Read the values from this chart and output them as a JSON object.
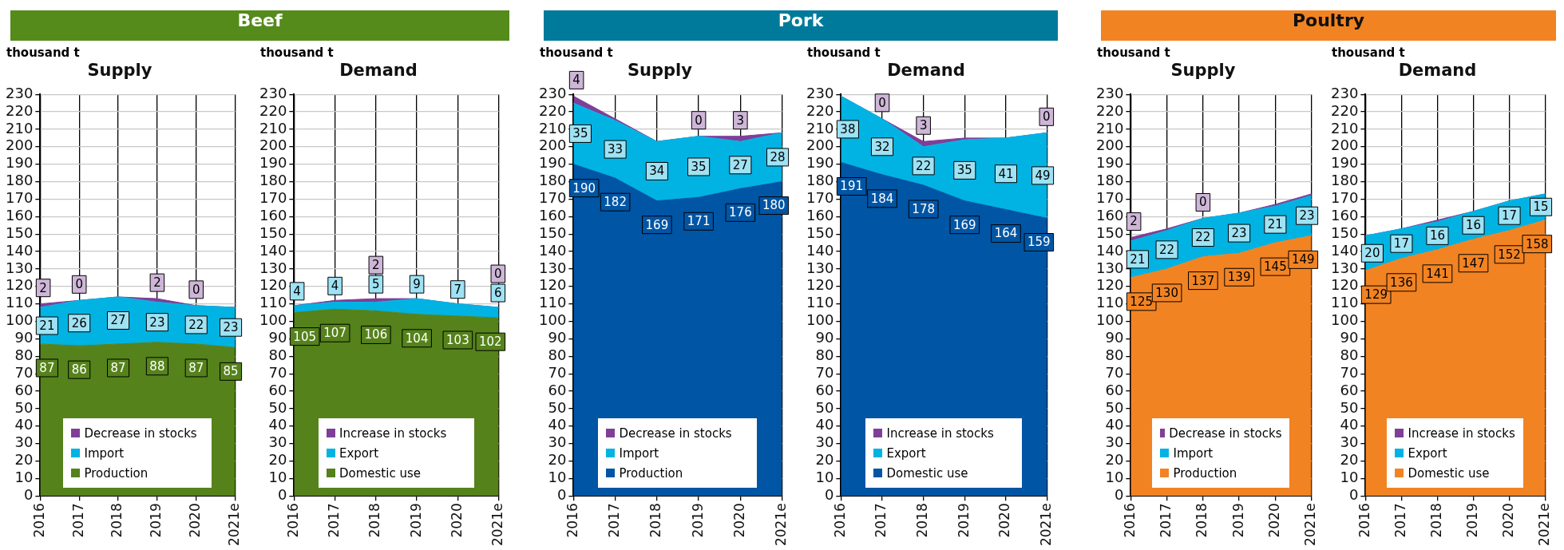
{
  "chart_data": [
    {
      "type": "area",
      "subtitle": "Beef",
      "title": "Supply",
      "ylabel": "thousand t",
      "categories": [
        "2016",
        "2017",
        "2018",
        "2019",
        "2020",
        "2021e"
      ],
      "stacked": true,
      "ylim": [
        0,
        230
      ],
      "yticks": [
        0,
        10,
        20,
        30,
        40,
        50,
        60,
        70,
        80,
        90,
        100,
        110,
        120,
        130,
        140,
        150,
        160,
        170,
        180,
        190,
        200,
        210,
        220,
        230
      ],
      "grid": true,
      "legend": "bottom",
      "series": [
        {
          "name": "Production",
          "color": "#55821b",
          "values": [
            87,
            86,
            87,
            88,
            87,
            85
          ],
          "value_labels": [
            "87",
            "86",
            "87",
            "88",
            "87",
            "85"
          ]
        },
        {
          "name": "Import",
          "color": "#00b3e3",
          "values": [
            21,
            26,
            27,
            23,
            22,
            23
          ],
          "value_labels": [
            "21",
            "26",
            "27",
            "23",
            "22",
            "23"
          ]
        },
        {
          "name": "Decrease in stocks",
          "color": "#7f3f98",
          "values": [
            2,
            0,
            0,
            2,
            0,
            0
          ],
          "value_labels": [
            "2",
            "0",
            null,
            "2",
            "0",
            null
          ]
        }
      ]
    },
    {
      "type": "area",
      "title": "Demand",
      "ylabel": "thousand t",
      "categories": [
        "2016",
        "2017",
        "2018",
        "2019",
        "2020",
        "2021e"
      ],
      "stacked": true,
      "ylim": [
        0,
        230
      ],
      "yticks": [
        0,
        10,
        20,
        30,
        40,
        50,
        60,
        70,
        80,
        90,
        100,
        110,
        120,
        130,
        140,
        150,
        160,
        170,
        180,
        190,
        200,
        210,
        220,
        230
      ],
      "grid": true,
      "legend": "bottom",
      "series": [
        {
          "name": "Domestic use",
          "color": "#55821b",
          "values": [
            105,
            107,
            106,
            104,
            103,
            102
          ],
          "value_labels": [
            "105",
            "107",
            "106",
            "104",
            "103",
            "102"
          ]
        },
        {
          "name": "Export",
          "color": "#00b3e3",
          "values": [
            4,
            4,
            5,
            9,
            7,
            6
          ],
          "value_labels": [
            "4",
            "4",
            "5",
            "9",
            "7",
            "6"
          ]
        },
        {
          "name": "Increase in stocks",
          "color": "#7f3f98",
          "values": [
            0,
            1,
            2,
            0,
            0,
            0
          ],
          "value_labels": [
            null,
            null,
            "2",
            null,
            null,
            "0"
          ]
        }
      ]
    },
    {
      "type": "area",
      "subtitle": "Pork",
      "title": "Supply",
      "ylabel": "thousand t",
      "categories": [
        "2016",
        "2017",
        "2018",
        "2019",
        "2020",
        "2021e"
      ],
      "stacked": true,
      "ylim": [
        0,
        230
      ],
      "yticks": [
        0,
        10,
        20,
        30,
        40,
        50,
        60,
        70,
        80,
        90,
        100,
        110,
        120,
        130,
        140,
        150,
        160,
        170,
        180,
        190,
        200,
        210,
        220,
        230
      ],
      "grid": true,
      "legend": "bottom",
      "series": [
        {
          "name": "Production",
          "color": "#0055a4",
          "values": [
            190,
            182,
            169,
            171,
            176,
            180
          ],
          "value_labels": [
            "190",
            "182",
            "169",
            "171",
            "176",
            "180"
          ]
        },
        {
          "name": "Import",
          "color": "#00b3e3",
          "values": [
            35,
            33,
            34,
            35,
            27,
            28
          ],
          "value_labels": [
            "35",
            "33",
            "34",
            "35",
            "27",
            "28"
          ]
        },
        {
          "name": "Decrease in stocks",
          "color": "#7f3f98",
          "values": [
            4,
            1,
            0,
            0,
            3,
            0
          ],
          "value_labels": [
            "4",
            null,
            null,
            "0",
            "3",
            null
          ]
        }
      ]
    },
    {
      "type": "area",
      "title": "Demand",
      "ylabel": "thousand t",
      "categories": [
        "2016",
        "2017",
        "2018",
        "2019",
        "2020",
        "2021e"
      ],
      "stacked": true,
      "ylim": [
        0,
        230
      ],
      "yticks": [
        0,
        10,
        20,
        30,
        40,
        50,
        60,
        70,
        80,
        90,
        100,
        110,
        120,
        130,
        140,
        150,
        160,
        170,
        180,
        190,
        200,
        210,
        220,
        230
      ],
      "grid": true,
      "legend": "bottom",
      "series": [
        {
          "name": "Domestic use",
          "color": "#0055a4",
          "values": [
            191,
            184,
            178,
            169,
            164,
            159
          ],
          "value_labels": [
            "191",
            "184",
            "178",
            "169",
            "164",
            "159"
          ]
        },
        {
          "name": "Export",
          "color": "#00b3e3",
          "values": [
            38,
            32,
            22,
            35,
            41,
            49
          ],
          "value_labels": [
            "38",
            "32",
            "22",
            "35",
            "41",
            "49"
          ]
        },
        {
          "name": "Increase in stocks",
          "color": "#7f3f98",
          "values": [
            0,
            0,
            3,
            1,
            0,
            0
          ],
          "value_labels": [
            null,
            "0",
            "3",
            null,
            null,
            "0"
          ]
        }
      ]
    },
    {
      "type": "area",
      "subtitle": "Poultry",
      "title": "Supply",
      "ylabel": "thousand t",
      "categories": [
        "2016",
        "2017",
        "2018",
        "2019",
        "2020",
        "2021e"
      ],
      "stacked": true,
      "ylim": [
        0,
        230
      ],
      "yticks": [
        0,
        10,
        20,
        30,
        40,
        50,
        60,
        70,
        80,
        90,
        100,
        110,
        120,
        130,
        140,
        150,
        160,
        170,
        180,
        190,
        200,
        210,
        220,
        230
      ],
      "grid": true,
      "legend": "bottom",
      "series": [
        {
          "name": "Production",
          "color": "#f28322",
          "values": [
            125,
            130,
            137,
            139,
            145,
            149
          ],
          "value_labels": [
            "125",
            "130",
            "137",
            "139",
            "145",
            "149"
          ]
        },
        {
          "name": "Import",
          "color": "#00b3e3",
          "values": [
            21,
            22,
            22,
            23,
            21,
            23
          ],
          "value_labels": [
            "21",
            "22",
            "22",
            "23",
            "21",
            "23"
          ]
        },
        {
          "name": "Decrease in stocks",
          "color": "#7f3f98",
          "values": [
            2,
            1,
            0,
            0,
            1,
            1
          ],
          "value_labels": [
            "2",
            null,
            "0",
            null,
            null,
            null
          ]
        }
      ]
    },
    {
      "type": "area",
      "title": "Demand",
      "ylabel": "thousand t",
      "categories": [
        "2016",
        "2017",
        "2018",
        "2019",
        "2020",
        "2021e"
      ],
      "stacked": true,
      "ylim": [
        0,
        230
      ],
      "yticks": [
        0,
        10,
        20,
        30,
        40,
        50,
        60,
        70,
        80,
        90,
        100,
        110,
        120,
        130,
        140,
        150,
        160,
        170,
        180,
        190,
        200,
        210,
        220,
        230
      ],
      "grid": true,
      "legend": "bottom",
      "series": [
        {
          "name": "Domestic use",
          "color": "#f28322",
          "values": [
            129,
            136,
            141,
            147,
            152,
            158
          ],
          "value_labels": [
            "129",
            "136",
            "141",
            "147",
            "152",
            "158"
          ]
        },
        {
          "name": "Export",
          "color": "#00b3e3",
          "values": [
            20,
            17,
            16,
            16,
            17,
            15
          ],
          "value_labels": [
            "20",
            "17",
            "16",
            "16",
            "17",
            "15"
          ]
        },
        {
          "name": "Increase in stocks",
          "color": "#7f3f98",
          "values": [
            0,
            0,
            1,
            0,
            0,
            0
          ]
        }
      ]
    }
  ]
}
